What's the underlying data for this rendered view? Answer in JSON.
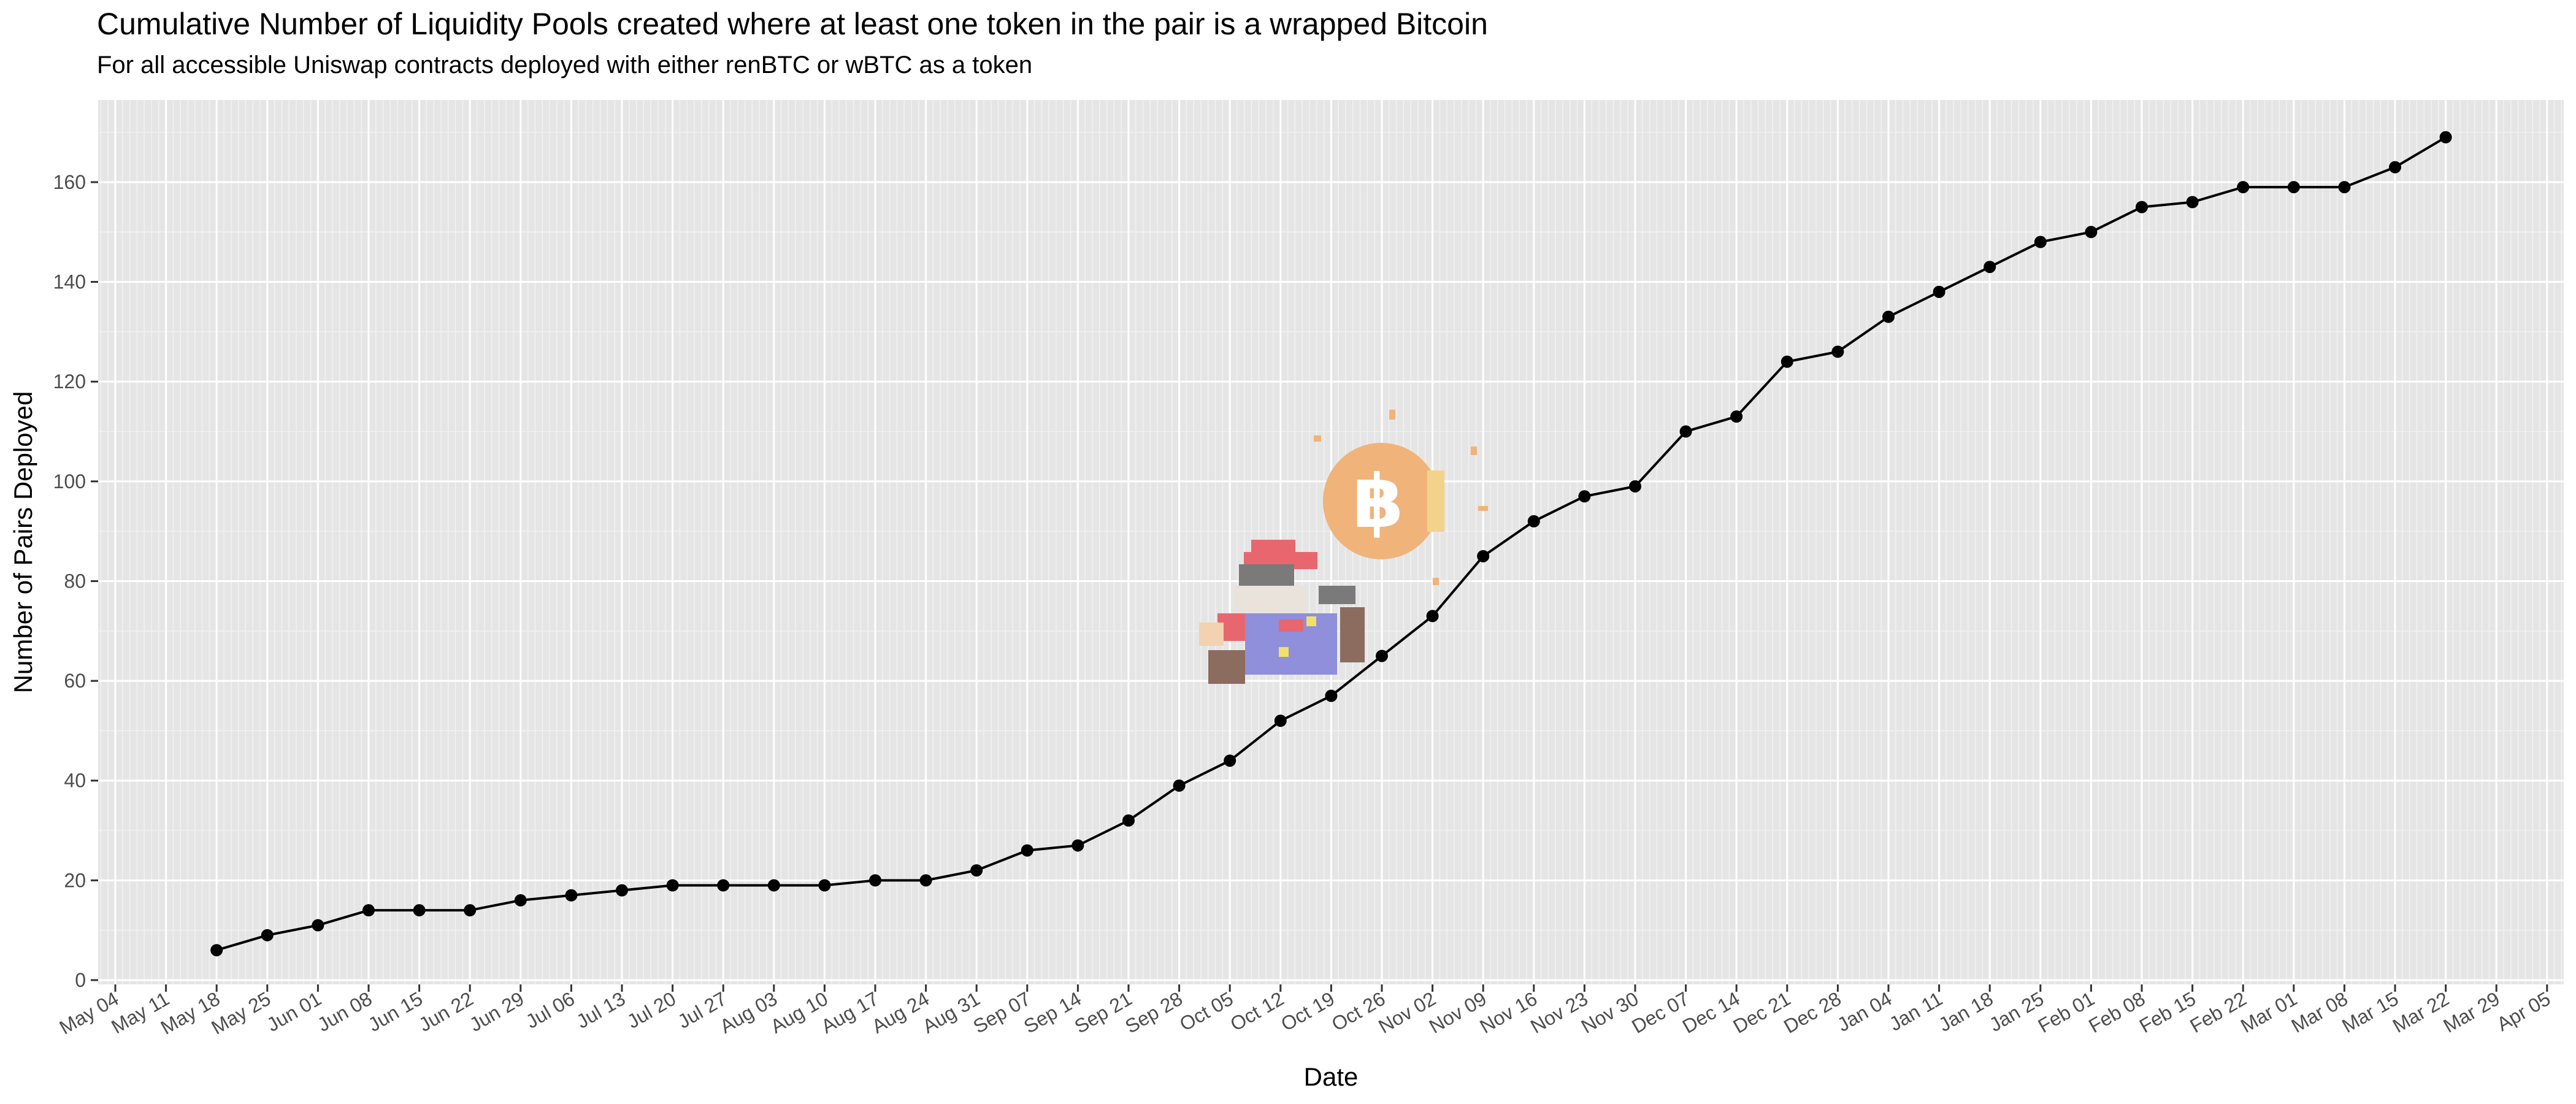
{
  "chart_data": {
    "type": "line",
    "title": "Cumulative Number of Liquidity Pools created where at least one token in the pair is a wrapped Bitcoin",
    "subtitle": "For all accessible Uniswap contracts deployed with either renBTC or wBTC as a token",
    "xlabel": "Date",
    "ylabel": "Number of Pairs Deployed",
    "ylim": [
      0,
      175
    ],
    "yticks": [
      0,
      20,
      40,
      60,
      80,
      100,
      120,
      140,
      160
    ],
    "xticks": [
      "May 04",
      "May 11",
      "May 18",
      "May 25",
      "Jun 01",
      "Jun 08",
      "Jun 15",
      "Jun 22",
      "Jun 29",
      "Jul 06",
      "Jul 13",
      "Jul 20",
      "Jul 27",
      "Aug 03",
      "Aug 10",
      "Aug 17",
      "Aug 24",
      "Aug 31",
      "Sep 07",
      "Sep 14",
      "Sep 21",
      "Sep 28",
      "Oct 05",
      "Oct 12",
      "Oct 19",
      "Oct 26",
      "Nov 02",
      "Nov 09",
      "Nov 16",
      "Nov 23",
      "Nov 30",
      "Dec 07",
      "Dec 14",
      "Dec 21",
      "Dec 28",
      "Jan 04",
      "Jan 11",
      "Jan 18",
      "Jan 25",
      "Feb 01",
      "Feb 08",
      "Feb 15",
      "Feb 22",
      "Mar 01",
      "Mar 08",
      "Mar 15",
      "Mar 22",
      "Mar 29",
      "Apr 05"
    ],
    "grid": true,
    "series": [
      {
        "x": [
          "May 18",
          "May 25",
          "Jun 01",
          "Jun 08",
          "Jun 15",
          "Jun 22",
          "Jun 29",
          "Jul 06",
          "Jul 13",
          "Jul 20",
          "Jul 27",
          "Aug 03",
          "Aug 10",
          "Aug 17",
          "Aug 24",
          "Aug 31",
          "Sep 07",
          "Sep 14",
          "Sep 21",
          "Sep 28",
          "Oct 05",
          "Oct 12",
          "Oct 19",
          "Oct 26",
          "Nov 02",
          "Nov 09",
          "Nov 16",
          "Nov 23",
          "Nov 30",
          "Dec 07",
          "Dec 14",
          "Dec 21",
          "Dec 28",
          "Jan 04",
          "Jan 11",
          "Jan 18",
          "Jan 25",
          "Feb 01",
          "Feb 08",
          "Feb 15",
          "Feb 22",
          "Mar 01",
          "Mar 08",
          "Mar 15",
          "Mar 22"
        ],
        "values": [
          6,
          9,
          11,
          14,
          14,
          14,
          16,
          17,
          18,
          19,
          19,
          19,
          19,
          20,
          20,
          22,
          26,
          27,
          32,
          39,
          44,
          52,
          57,
          65,
          73,
          85,
          92,
          97,
          99,
          110,
          113,
          124,
          126,
          133,
          138,
          143,
          148,
          150,
          155,
          156,
          159,
          159,
          159,
          163,
          169
        ],
        "color": "#000000"
      }
    ],
    "decoration": {
      "description_icon": "pixel-mario-bitcoin-coin",
      "colors": [
        "#e8676e",
        "#8f8fdb",
        "#f0b37a",
        "#8c6c5f",
        "#7a7a7a"
      ]
    }
  }
}
